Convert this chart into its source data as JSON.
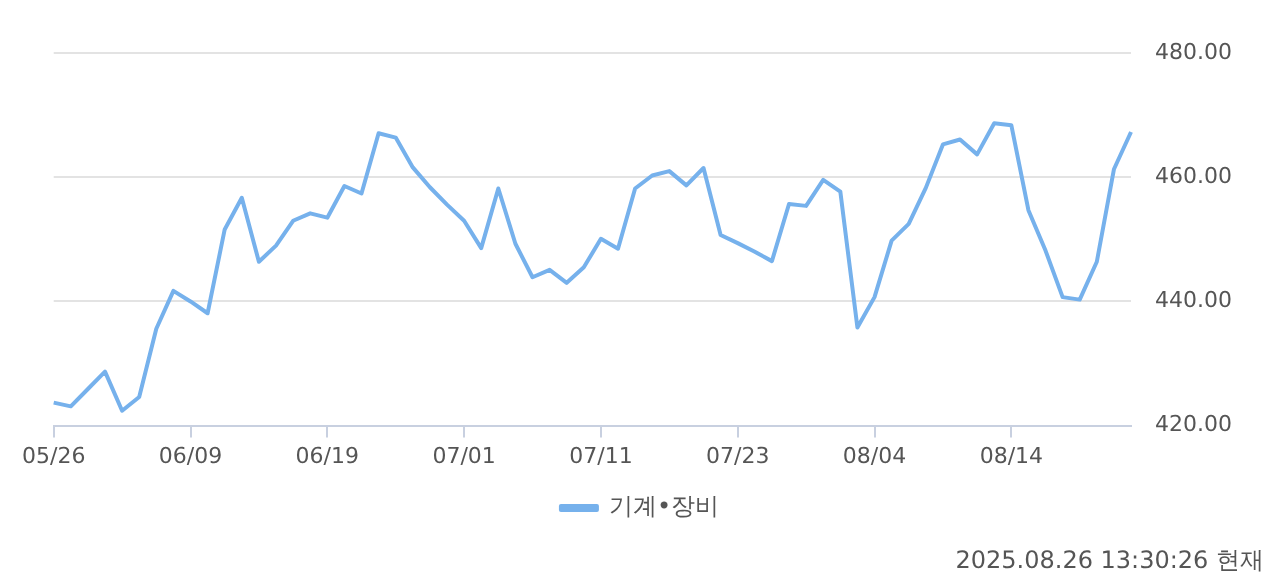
{
  "chart_data": {
    "type": "line",
    "categories": [
      "05/26",
      null,
      null,
      null,
      null,
      null,
      null,
      null,
      "06/09",
      null,
      null,
      null,
      null,
      null,
      null,
      null,
      "06/19",
      null,
      null,
      null,
      null,
      null,
      null,
      null,
      "07/01",
      null,
      null,
      null,
      null,
      null,
      null,
      null,
      "07/11",
      null,
      null,
      null,
      null,
      null,
      null,
      null,
      "07/23",
      null,
      null,
      null,
      null,
      null,
      null,
      null,
      "08/04",
      null,
      null,
      null,
      null,
      null,
      null,
      null,
      "08/14",
      null,
      null,
      null,
      null,
      null,
      null,
      null
    ],
    "series": [
      {
        "name": "기계•장비",
        "color": "#76b1ec",
        "values": [
          423.7,
          423.1,
          425.9,
          428.7,
          422.4,
          424.6,
          435.6,
          441.7,
          440,
          438.1,
          451.6,
          456.7,
          446.4,
          449,
          453,
          454.2,
          453.5,
          458.6,
          457.4,
          467.1,
          466.4,
          461.6,
          458.4,
          455.6,
          453,
          448.6,
          458.2,
          449.3,
          443.9,
          445.1,
          443,
          445.5,
          450.1,
          448.5,
          458.2,
          460.3,
          461,
          458.7,
          461.5,
          450.7,
          449.4,
          448,
          446.5,
          455.7,
          455.4,
          459.6,
          457.7,
          435.8,
          440.7,
          449.8,
          452.5,
          458.3,
          465.3,
          466.1,
          463.7,
          468.7,
          468.4,
          454.7,
          448.2,
          440.7,
          440.3,
          446.4,
          461.3,
          467.3
        ]
      }
    ],
    "ylim": [
      420,
      480
    ],
    "yticks": [
      {
        "value": 420,
        "label": "420.00"
      },
      {
        "value": 440,
        "label": "440.00"
      },
      {
        "value": 460,
        "label": "460.00"
      },
      {
        "value": 480,
        "label": "480.00"
      }
    ],
    "grid": "y",
    "legend": "bottom",
    "marker": "none",
    "line_style": "solid",
    "annotations": [
      "2025.08.26 13:30:26 현재"
    ]
  }
}
